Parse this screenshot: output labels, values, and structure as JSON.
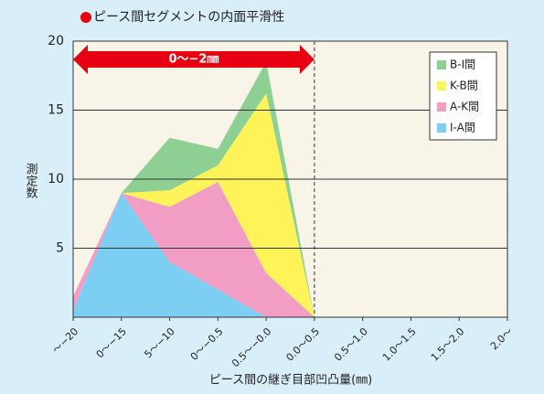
{
  "chart_data": {
    "type": "stacked_area",
    "title": "ピース間セグメントの内面平滑性",
    "y_label": "測定数",
    "x_label": "ピース間の継ぎ目部凹凸量(㎜)",
    "annotation": "0〜−2㎜",
    "categories": [
      "〜−20",
      "0〜−15",
      "5〜−10",
      "0〜−0.5",
      "0.5〜−0.0",
      "0.0〜0.5",
      "0.5〜1.0",
      "1.0〜1.5",
      "1.5〜2.0",
      "2.0〜"
    ],
    "series": [
      {
        "name": "I-A間",
        "color": "#7ccff2",
        "values": [
          0.5,
          9,
          4,
          2,
          0,
          0,
          null,
          null,
          null,
          null
        ]
      },
      {
        "name": "A-K間",
        "color": "#f29ec4",
        "values": [
          1,
          0,
          4,
          7.8,
          3.2,
          0,
          null,
          null,
          null,
          null
        ]
      },
      {
        "name": "K-B間",
        "color": "#fff35a",
        "values": [
          0,
          0,
          1.2,
          1.2,
          13,
          0,
          null,
          null,
          null,
          null
        ]
      },
      {
        "name": "B-I間",
        "color": "#8ecf94",
        "values": [
          0,
          0,
          3.8,
          1.2,
          2.3,
          0,
          null,
          null,
          null,
          null
        ]
      }
    ],
    "ylim": [
      0,
      20
    ],
    "yticks": [
      5,
      10,
      15,
      20
    ],
    "grid": true
  }
}
